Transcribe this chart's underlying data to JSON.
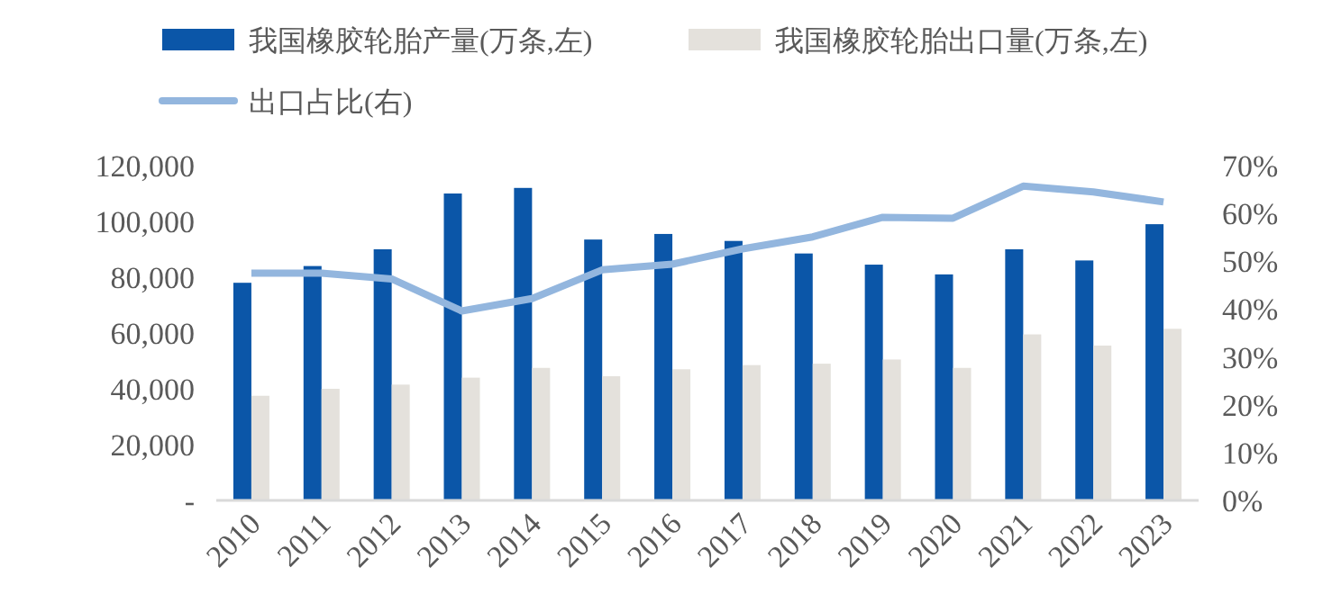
{
  "chart_data": {
    "type": "bar",
    "categories": [
      "2010",
      "2011",
      "2012",
      "2013",
      "2014",
      "2015",
      "2016",
      "2017",
      "2018",
      "2019",
      "2020",
      "2021",
      "2022",
      "2023"
    ],
    "series": [
      {
        "name": "我国橡胶轮胎产量(万条,左)",
        "color": "#0b56a8",
        "values": [
          78000,
          84000,
          90000,
          110000,
          112000,
          93500,
          95500,
          93000,
          88500,
          84500,
          81000,
          90000,
          86000,
          99000
        ]
      },
      {
        "name": "我国橡胶轮胎出口量(万条,左)",
        "color": "#e4e1dc",
        "values": [
          37500,
          40000,
          41500,
          44000,
          47500,
          44500,
          47000,
          48500,
          49000,
          50500,
          47500,
          59500,
          55500,
          61500
        ]
      },
      {
        "name": "出口占比(右)",
        "type": "line",
        "axis": "y2",
        "color": "#93b6de",
        "values": [
          47.5,
          47.5,
          46.3,
          39.6,
          42.2,
          48.2,
          49.4,
          52.6,
          55.1,
          59.2,
          59.0,
          65.7,
          64.5,
          62.4
        ]
      }
    ],
    "ylim": [
      0,
      120000
    ],
    "yticks": [
      {
        "value": 0,
        "label": "-"
      },
      {
        "value": 20000,
        "label": "20,000"
      },
      {
        "value": 40000,
        "label": "40,000"
      },
      {
        "value": 60000,
        "label": "60,000"
      },
      {
        "value": 80000,
        "label": "80,000"
      },
      {
        "value": 100000,
        "label": "100,000"
      },
      {
        "value": 120000,
        "label": "120,000"
      }
    ],
    "y2lim": [
      0,
      70
    ],
    "y2ticks": [
      {
        "value": 0,
        "label": "0%"
      },
      {
        "value": 10,
        "label": "10%"
      },
      {
        "value": 20,
        "label": "20%"
      },
      {
        "value": 30,
        "label": "30%"
      },
      {
        "value": 40,
        "label": "40%"
      },
      {
        "value": 50,
        "label": "50%"
      },
      {
        "value": 60,
        "label": "60%"
      },
      {
        "value": 70,
        "label": "70%"
      }
    ],
    "grid": false,
    "legend": "top"
  }
}
